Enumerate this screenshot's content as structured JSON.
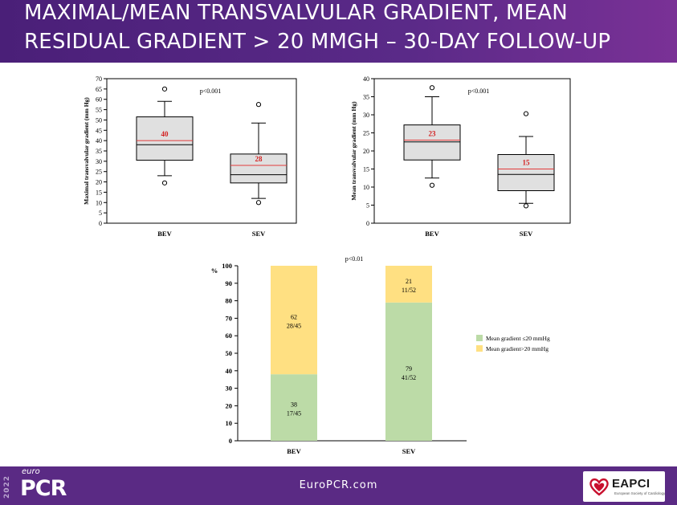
{
  "slide": {
    "title_line1": "MAXIMAL/MEAN TRANSVALVULAR GRADIENT, MEAN",
    "title_line2": "RESIDUAL GRADIENT > 20 MMGH – 30-DAY FOLLOW-UP"
  },
  "footer": {
    "year": "2022",
    "brand_small": "euro",
    "brand_large": "PCR",
    "website": "EuroPCR.com",
    "partner_name": "EAPCI",
    "partner_sub": "European Society of Cardiology"
  },
  "colors": {
    "header": "#5a2a88",
    "footer": "#5a2a84",
    "box_fill": "#e0e0e0",
    "mean_line": "#e23b3b",
    "green": "#bcdba7",
    "yellow": "#ffe082"
  },
  "chart_data": [
    {
      "type": "box",
      "ylabel": "Maximal transvalvular gradient  (mm Hg)",
      "ylim": [
        0,
        70
      ],
      "yticks": [
        0,
        5,
        10,
        15,
        20,
        25,
        30,
        35,
        40,
        45,
        50,
        55,
        60,
        65,
        70
      ],
      "annotation": "p<0.001",
      "categories": [
        "BEV",
        "SEV"
      ],
      "boxes": [
        {
          "category": "BEV",
          "whisker_low": 23,
          "q1": 30.5,
          "median": 38,
          "mean": 40,
          "q3": 51.5,
          "whisker_high": 59,
          "outliers": [
            19.5,
            65
          ],
          "mean_label": "40"
        },
        {
          "category": "SEV",
          "whisker_low": 12,
          "q1": 19.5,
          "median": 23.5,
          "mean": 28,
          "q3": 33.5,
          "whisker_high": 48.5,
          "outliers": [
            10,
            57.5
          ],
          "mean_label": "28"
        }
      ]
    },
    {
      "type": "box",
      "ylabel": "Mean transvalvular gradient  (mm Hg)",
      "ylim": [
        0,
        40
      ],
      "yticks": [
        0,
        5,
        10,
        15,
        20,
        25,
        30,
        35,
        40
      ],
      "annotation": "p<0.001",
      "categories": [
        "BEV",
        "SEV"
      ],
      "boxes": [
        {
          "category": "BEV",
          "whisker_low": 12.5,
          "q1": 17.5,
          "median": 22.5,
          "mean": 23,
          "q3": 27.2,
          "whisker_high": 35,
          "outliers": [
            10.5,
            37.5
          ],
          "mean_label": "23"
        },
        {
          "category": "SEV",
          "whisker_low": 5.5,
          "q1": 9,
          "median": 13.5,
          "mean": 15,
          "q3": 19,
          "whisker_high": 24,
          "outliers": [
            4.8,
            30.3
          ],
          "mean_label": "15"
        }
      ]
    },
    {
      "type": "stacked-bar",
      "ylabel": "%",
      "ylim": [
        0,
        100
      ],
      "yticks": [
        0,
        10,
        20,
        30,
        40,
        50,
        60,
        70,
        80,
        90,
        100
      ],
      "annotation": "p<0.01",
      "categories": [
        "BEV",
        "SEV"
      ],
      "series": [
        {
          "name": "Mean gradient ≤20 mmHg",
          "values": [
            38,
            79
          ],
          "labels": [
            "38",
            "79"
          ],
          "counts": [
            "17/45",
            "41/52"
          ]
        },
        {
          "name": "Mean gradient>20 mmHg",
          "values": [
            62,
            21
          ],
          "labels": [
            "62",
            "21"
          ],
          "counts": [
            "28/45",
            "11/52"
          ]
        }
      ],
      "legend_position": "right"
    }
  ]
}
